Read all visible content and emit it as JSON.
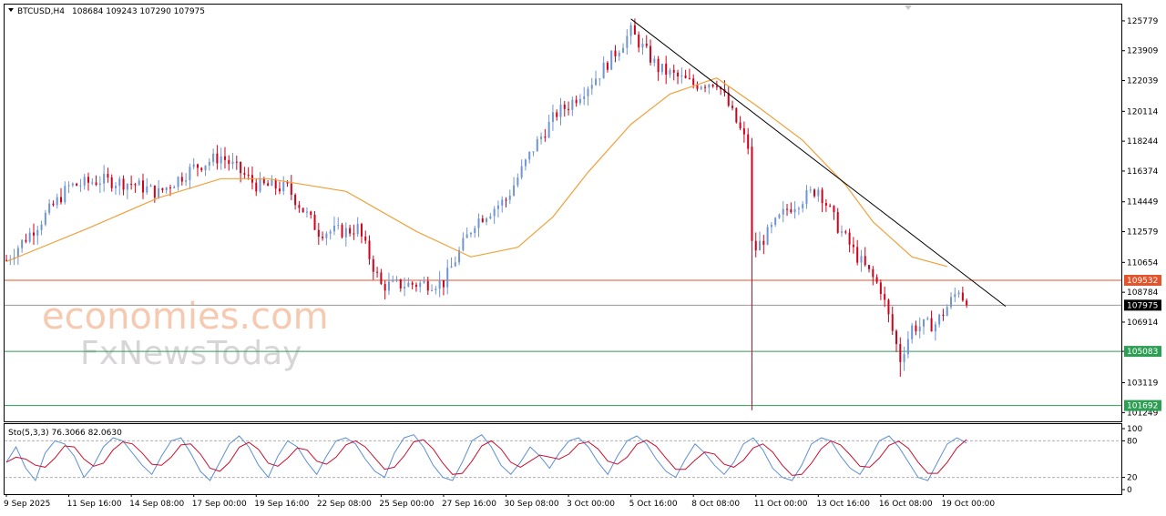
{
  "header": {
    "symbol": "BTCUSD,H4",
    "ohlc": "108684 109243 107290 107975"
  },
  "watermark": {
    "line1": "economies.com",
    "line2": "FxNewsToday"
  },
  "colors": {
    "bull": "#6f95d3",
    "bear": "#d0021b",
    "ma": "#f0a13a",
    "trend": "#000000",
    "resistance": "#e2542b",
    "support": "#2e9e55",
    "last": "#9a9a9a",
    "stoch_main": "#5b8fd6",
    "stoch_signal": "#c8102e"
  },
  "chart_data": {
    "type": "candlestick",
    "timeframe": "H4",
    "y_ticks": [
      125779,
      123909,
      122039,
      120114,
      118244,
      116374,
      114449,
      112579,
      110654,
      108784,
      106914,
      105083,
      103119,
      101249
    ],
    "ylim": [
      100700,
      126800
    ],
    "x_labels": [
      "9 Sep 2025",
      "11 Sep 16:00",
      "14 Sep 08:00",
      "17 Sep 00:00",
      "19 Sep 16:00",
      "22 Sep 08:00",
      "25 Sep 00:00",
      "27 Sep 16:00",
      "30 Sep 08:00",
      "3 Oct 00:00",
      "5 Oct 16:00",
      "8 Oct 08:00",
      "11 Oct 00:00",
      "13 Oct 16:00",
      "16 Oct 08:00",
      "19 Oct 00:00"
    ],
    "levels": [
      {
        "name": "resistance",
        "value": 109532,
        "label": "109532"
      },
      {
        "name": "last-price",
        "value": 107975,
        "label": "107975"
      },
      {
        "name": "support-1",
        "value": 105083,
        "label": "105083"
      },
      {
        "name": "support-2",
        "value": 101692,
        "label": "101692"
      }
    ],
    "trendline": {
      "from": {
        "x": "5 Oct 16:00",
        "y": 125900
      },
      "to": {
        "x": "21 Oct 16:00",
        "y": 107900
      }
    },
    "price_path": [
      {
        "x": "9 Sep 2025",
        "y": 110800
      },
      {
        "x": "10 Sep 12:00",
        "y": 113300
      },
      {
        "x": "11 Sep 16:00",
        "y": 115400
      },
      {
        "x": "13 Sep 00:00",
        "y": 115800
      },
      {
        "x": "14 Sep 08:00",
        "y": 115600
      },
      {
        "x": "15 Sep 12:00",
        "y": 115000
      },
      {
        "x": "17 Sep 00:00",
        "y": 116600
      },
      {
        "x": "18 Sep 04:00",
        "y": 117300
      },
      {
        "x": "19 Sep 16:00",
        "y": 115500
      },
      {
        "x": "21 Sep 00:00",
        "y": 115300
      },
      {
        "x": "22 Sep 08:00",
        "y": 112600
      },
      {
        "x": "23 Sep 12:00",
        "y": 112600
      },
      {
        "x": "24 Sep 00:00",
        "y": 112800
      },
      {
        "x": "25 Sep 00:00",
        "y": 109200
      },
      {
        "x": "26 Sep 12:00",
        "y": 109300
      },
      {
        "x": "27 Sep 16:00",
        "y": 109400
      },
      {
        "x": "29 Sep 00:00",
        "y": 113200
      },
      {
        "x": "30 Sep 08:00",
        "y": 114600
      },
      {
        "x": "1 Oct 12:00",
        "y": 117800
      },
      {
        "x": "2 Oct 12:00",
        "y": 120000
      },
      {
        "x": "3 Oct 00:00",
        "y": 120500
      },
      {
        "x": "4 Oct 08:00",
        "y": 122500
      },
      {
        "x": "5 Oct 16:00",
        "y": 125100
      },
      {
        "x": "6 Oct 20:00",
        "y": 122800
      },
      {
        "x": "8 Oct 08:00",
        "y": 121800
      },
      {
        "x": "9 Oct 08:00",
        "y": 122000
      },
      {
        "x": "10 Oct 16:00",
        "y": 117900
      },
      {
        "x": "10 Oct 20:00",
        "y": 112000
      },
      {
        "x": "11 Oct 00:00",
        "y": 111500
      },
      {
        "x": "12 Oct 08:00",
        "y": 114000
      },
      {
        "x": "13 Oct 16:00",
        "y": 115300
      },
      {
        "x": "14 Oct 12:00",
        "y": 112900
      },
      {
        "x": "15 Oct 08:00",
        "y": 111000
      },
      {
        "x": "16 Oct 08:00",
        "y": 109000
      },
      {
        "x": "17 Oct 04:00",
        "y": 104600
      },
      {
        "x": "17 Oct 16:00",
        "y": 106600
      },
      {
        "x": "18 Oct 16:00",
        "y": 106800
      },
      {
        "x": "19 Oct 00:00",
        "y": 107500
      },
      {
        "x": "19 Oct 16:00",
        "y": 109000
      },
      {
        "x": "20 Oct 00:00",
        "y": 107975
      }
    ],
    "ma_path": [
      {
        "x": "9 Sep 2025",
        "y": 110700
      },
      {
        "x": "12 Sep 12:00",
        "y": 112800
      },
      {
        "x": "15 Sep 12:00",
        "y": 114700
      },
      {
        "x": "18 Sep 04:00",
        "y": 115900
      },
      {
        "x": "20 Sep 04:00",
        "y": 115900
      },
      {
        "x": "23 Sep 12:00",
        "y": 115100
      },
      {
        "x": "26 Sep 12:00",
        "y": 112600
      },
      {
        "x": "28 Sep 20:00",
        "y": 111000
      },
      {
        "x": "30 Sep 20:00",
        "y": 111600
      },
      {
        "x": "2 Oct 08:00",
        "y": 113500
      },
      {
        "x": "3 Oct 20:00",
        "y": 116300
      },
      {
        "x": "5 Oct 16:00",
        "y": 119300
      },
      {
        "x": "7 Oct 08:00",
        "y": 121200
      },
      {
        "x": "9 Oct 08:00",
        "y": 122200
      },
      {
        "x": "11 Oct 00:00",
        "y": 120500
      },
      {
        "x": "13 Oct 00:00",
        "y": 118300
      },
      {
        "x": "14 Oct 20:00",
        "y": 115500
      },
      {
        "x": "16 Oct 00:00",
        "y": 113200
      },
      {
        "x": "17 Oct 16:00",
        "y": 111000
      },
      {
        "x": "19 Oct 04:00",
        "y": 110400
      }
    ],
    "stochastic": {
      "label": "Sto(5,3,3) 76.3066 82.0630",
      "main": 76.3066,
      "signal": 82.063,
      "ylim": [
        0,
        100
      ],
      "y_ticks": [
        "100",
        "80",
        "20",
        "0"
      ],
      "levels": [
        20,
        80
      ],
      "main_values": [
        45,
        70,
        35,
        15,
        60,
        80,
        75,
        55,
        20,
        40,
        70,
        85,
        80,
        60,
        40,
        25,
        55,
        80,
        85,
        60,
        30,
        15,
        45,
        75,
        88,
        70,
        40,
        20,
        55,
        80,
        70,
        45,
        25,
        55,
        80,
        85,
        75,
        50,
        30,
        20,
        60,
        85,
        90,
        70,
        40,
        20,
        15,
        45,
        80,
        90,
        70,
        40,
        25,
        45,
        70,
        55,
        35,
        60,
        80,
        85,
        70,
        45,
        25,
        55,
        80,
        88,
        75,
        50,
        30,
        20,
        50,
        75,
        60,
        40,
        25,
        45,
        75,
        85,
        65,
        35,
        20,
        15,
        40,
        75,
        85,
        80,
        55,
        35,
        25,
        50,
        80,
        88,
        70,
        45,
        20,
        15,
        45,
        75,
        85,
        80
      ]
    }
  }
}
